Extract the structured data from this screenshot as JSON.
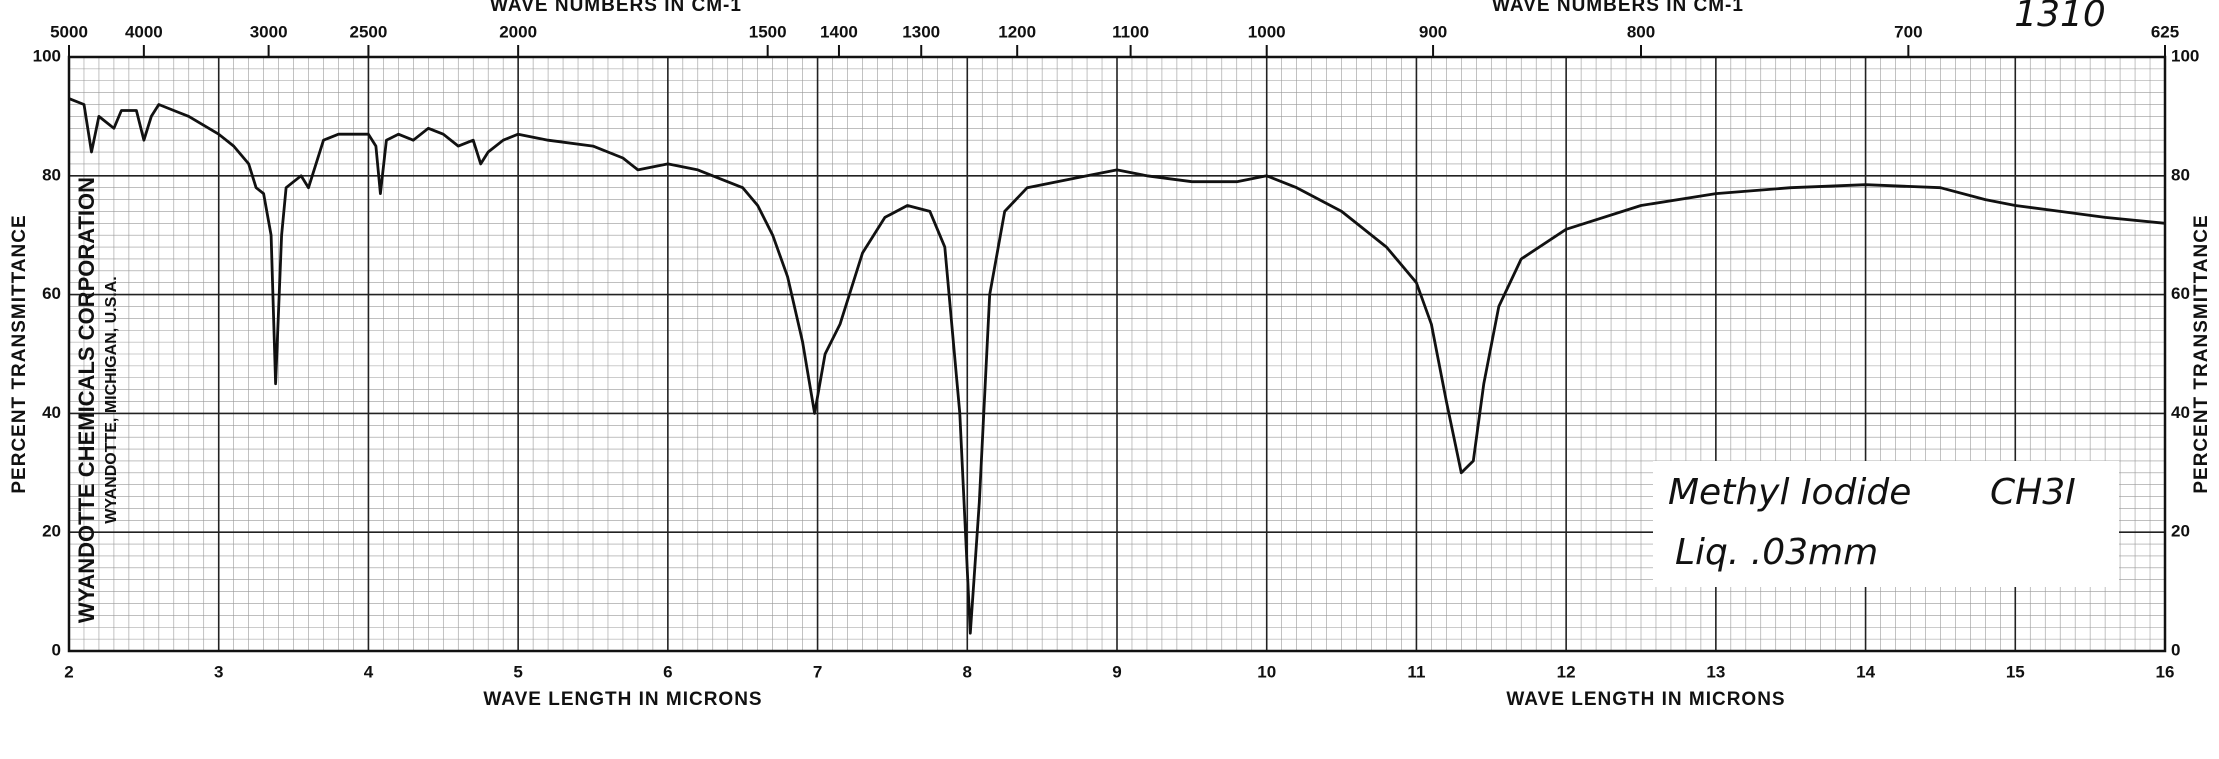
{
  "chart_data": {
    "type": "line",
    "x_labels": [
      "WAVE LENGTH IN MICRONS",
      "WAVE LENGTH IN MICRONS"
    ],
    "x2_labels": [
      "WAVE NUMBERS IN CM-1",
      "WAVE NUMBERS IN CM-1"
    ],
    "y_labels": [
      "PERCENT TRANSMITTANCE",
      "PERCENT TRANSMITTANCE"
    ],
    "maker": [
      "WYANDOTTE CHEMICALS CORPORATION",
      "WYANDOTTE, MICHIGAN, U.S.A."
    ],
    "chart_number": "1310",
    "annotation": [
      "Methyl Iodide",
      "CH3I",
      "Liq. .03mm"
    ],
    "color": "#111111",
    "grid": true,
    "xlim": [
      2,
      16
    ],
    "xticks": [
      2,
      3,
      4,
      5,
      6,
      7,
      8,
      9,
      10,
      11,
      12,
      13,
      14,
      15,
      16
    ],
    "x2ticks": [
      5000,
      4000,
      3000,
      2500,
      2000,
      1500,
      1400,
      1300,
      1200,
      1100,
      1000,
      900,
      800,
      700,
      625
    ],
    "ylim": [
      0,
      100
    ],
    "yticks": [
      0,
      20,
      40,
      60,
      80,
      100
    ],
    "x": [
      2.0,
      2.1,
      2.15,
      2.2,
      2.3,
      2.35,
      2.45,
      2.5,
      2.55,
      2.6,
      2.7,
      2.8,
      3.0,
      3.1,
      3.2,
      3.25,
      3.3,
      3.35,
      3.38,
      3.42,
      3.45,
      3.5,
      3.55,
      3.6,
      3.7,
      3.8,
      4.0,
      4.05,
      4.08,
      4.12,
      4.2,
      4.3,
      4.4,
      4.5,
      4.6,
      4.7,
      4.75,
      4.8,
      4.9,
      5.0,
      5.2,
      5.5,
      5.7,
      5.8,
      6.0,
      6.2,
      6.5,
      6.6,
      6.7,
      6.8,
      6.9,
      6.98,
      7.05,
      7.15,
      7.3,
      7.45,
      7.6,
      7.75,
      7.85,
      7.95,
      8.02,
      8.08,
      8.15,
      8.25,
      8.4,
      8.6,
      8.8,
      9.0,
      9.2,
      9.5,
      9.8,
      10.0,
      10.2,
      10.5,
      10.8,
      11.0,
      11.1,
      11.2,
      11.3,
      11.38,
      11.45,
      11.55,
      11.7,
      12.0,
      12.5,
      13.0,
      13.5,
      14.0,
      14.5,
      14.8,
      15.0,
      15.3,
      15.6,
      16.0
    ],
    "values": [
      93,
      92,
      84,
      90,
      88,
      91,
      91,
      86,
      90,
      92,
      91,
      90,
      87,
      85,
      82,
      78,
      77,
      70,
      45,
      70,
      78,
      79,
      80,
      78,
      86,
      87,
      87,
      85,
      77,
      86,
      87,
      86,
      88,
      87,
      85,
      86,
      82,
      84,
      86,
      87,
      86,
      85,
      83,
      81,
      82,
      81,
      78,
      75,
      70,
      63,
      52,
      40,
      50,
      55,
      67,
      73,
      75,
      74,
      68,
      40,
      3,
      25,
      60,
      74,
      78,
      79,
      80,
      81,
      80,
      79,
      79,
      80,
      78,
      74,
      68,
      62,
      55,
      42,
      30,
      32,
      45,
      58,
      66,
      71,
      75,
      77,
      78,
      78.5,
      78,
      76,
      75,
      74,
      73,
      72
    ]
  }
}
